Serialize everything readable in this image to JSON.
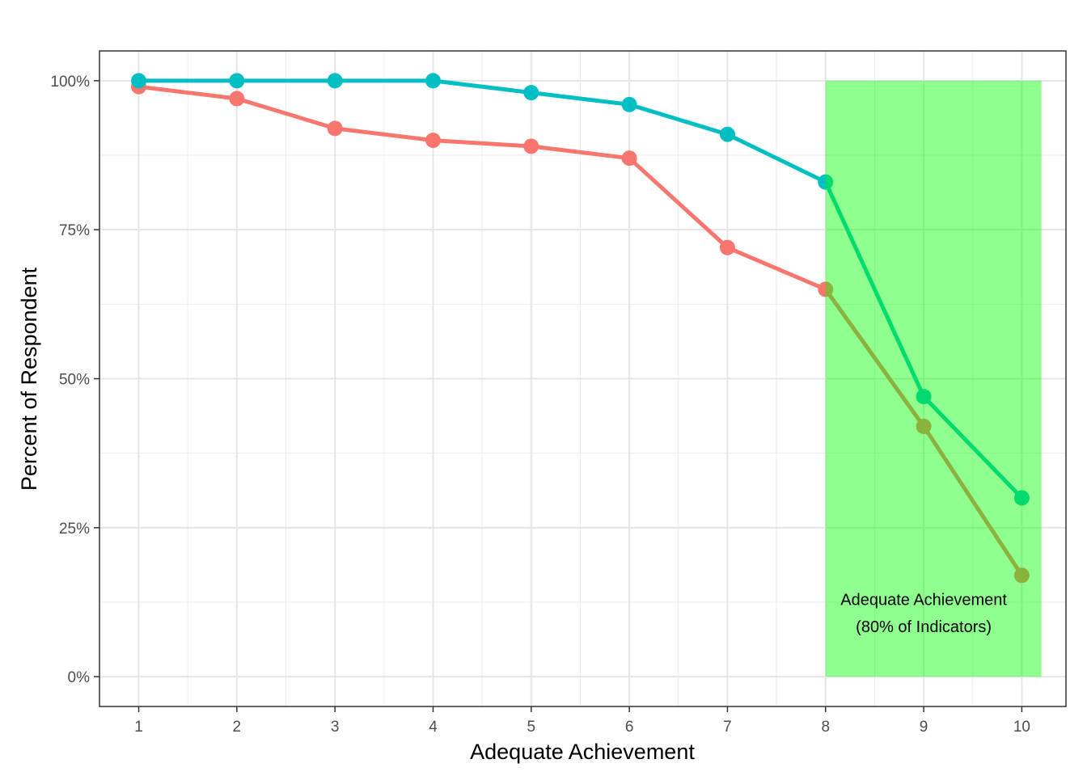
{
  "chart_data": {
    "type": "line",
    "xlabel": "Adequate Achievement",
    "ylabel": "Percent of Respondent",
    "x": [
      1,
      2,
      3,
      4,
      5,
      6,
      7,
      8,
      9,
      10
    ],
    "xlim": [
      0.6,
      10.45
    ],
    "ylim": [
      -0.05,
      1.05
    ],
    "y_ticks": [
      0,
      0.25,
      0.5,
      0.75,
      1.0
    ],
    "y_tick_labels": [
      "0%",
      "25%",
      "50%",
      "75%",
      "100%"
    ],
    "x_tick_labels": [
      "1",
      "2",
      "3",
      "4",
      "5",
      "6",
      "7",
      "8",
      "9",
      "10"
    ],
    "grid": true,
    "series": [
      {
        "color": "#F8766D",
        "values": [
          0.99,
          0.97,
          0.92,
          0.9,
          0.89,
          0.87,
          0.72,
          0.65,
          0.42,
          0.17
        ]
      },
      {
        "color": "#00BFC4",
        "values": [
          1.0,
          1.0,
          1.0,
          1.0,
          0.98,
          0.96,
          0.91,
          0.83,
          0.47,
          0.3
        ]
      }
    ],
    "highlight": {
      "x_range": [
        8,
        10.2
      ],
      "y_range": [
        0,
        1.0
      ],
      "color": "#00FF00",
      "opacity": 0.44,
      "label_lines": [
        "Adequate Achievement",
        "(80% of Indicators)"
      ],
      "label_x": 9,
      "label_y_lines": [
        0.12,
        0.075
      ]
    }
  }
}
